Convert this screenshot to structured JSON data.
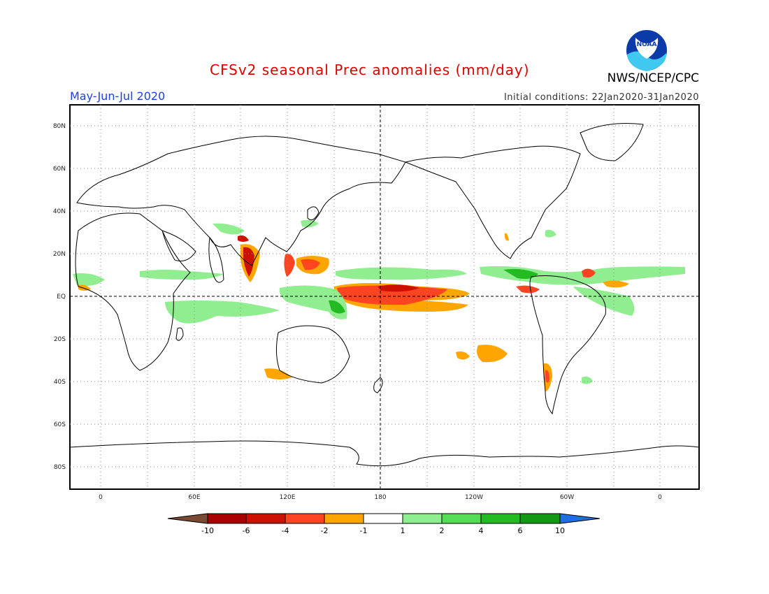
{
  "header": {
    "title": "CFSv2 seasonal Prec anomalies (mm/day)",
    "season": "May-Jun-Jul 2020",
    "initial_conditions": "Initial conditions: 22Jan2020-31Jan2020",
    "agency": "NWS/NCEP/CPC",
    "logo_text": "NOAA"
  },
  "map": {
    "lat_labels": [
      "80N",
      "60N",
      "40N",
      "20N",
      "EQ",
      "20S",
      "40S",
      "60S",
      "80S"
    ],
    "lon_labels": [
      "0",
      "60E",
      "120E",
      "180",
      "120W",
      "60W",
      "0"
    ]
  },
  "colorbar": {
    "labels": [
      "-10",
      "-6",
      "-4",
      "-2",
      "-1",
      "1",
      "2",
      "4",
      "6",
      "10"
    ],
    "colors": [
      "#7a4a32",
      "#aa0000",
      "#cc1100",
      "#ff4422",
      "#ffa500",
      "#ffffff",
      "#90ee90",
      "#55dd55",
      "#22bb22",
      "#129812",
      "#1e6fe0"
    ]
  },
  "colors": {
    "title": "#dd0000",
    "season": "#1f40e0",
    "negative_strong": "#cc1100",
    "negative": "#ffa500",
    "positive": "#90ee90",
    "positive_strong": "#22bb22"
  }
}
